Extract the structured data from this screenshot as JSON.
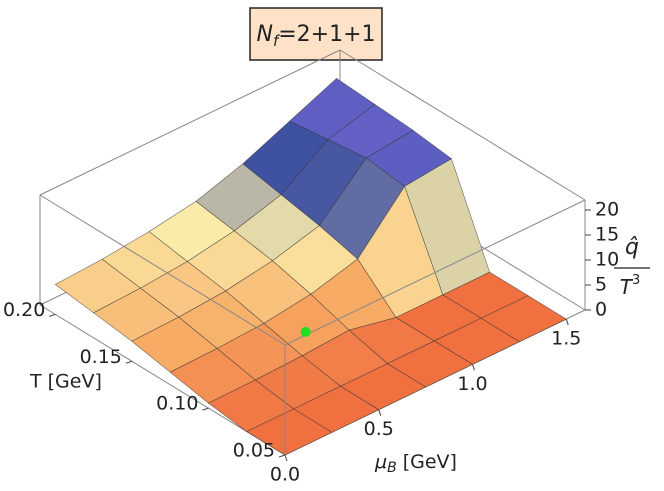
{
  "chart_data": {
    "type": "surface3d",
    "title": "N",
    "title_sub": "f",
    "title_rest": "=2+1+1",
    "xlabel": "μ",
    "xlabel_sub": "B",
    "xlabel_unit": "[GeV]",
    "ylabel": "T [GeV]",
    "zlabel_top": "q̂",
    "zlabel_bottom": "T",
    "zlabel_sup": "3",
    "x": [
      0,
      0.25,
      0.5,
      0.75,
      1.0,
      1.25,
      1.5
    ],
    "y": [
      0.05,
      0.075,
      0.1,
      0.125,
      0.15,
      0.175,
      0.2
    ],
    "z": [
      [
        0,
        0,
        0,
        0,
        0,
        0,
        0
      ],
      [
        0,
        0,
        0,
        0,
        0,
        0,
        0
      ],
      [
        1,
        1.1,
        1.4,
        2,
        0,
        0,
        0
      ],
      [
        2.5,
        2.7,
        3.2,
        4.5,
        7,
        17,
        18
      ],
      [
        4,
        4.3,
        5,
        6.5,
        9,
        18,
        19
      ],
      [
        5,
        5.4,
        6.2,
        7.8,
        10.5,
        17,
        19.5
      ],
      [
        6,
        6.5,
        7.5,
        9,
        12,
        16,
        20
      ]
    ],
    "point": {
      "x": 0.6,
      "y": 0.11,
      "z": 2.5,
      "color": "#22dd22"
    },
    "xlim": [
      0,
      1.6
    ],
    "ylim": [
      0.05,
      0.21
    ],
    "zlim": [
      0,
      22
    ],
    "xticks": [
      {
        "value": 0,
        "label": "0.0"
      },
      0.5,
      {
        "value": 1.0,
        "label": "1.0"
      },
      1.5
    ],
    "yticks": [
      0.05,
      {
        "value": 0.1,
        "label": "0.10"
      },
      0.15,
      {
        "value": 0.2,
        "label": "0.20"
      }
    ],
    "zticks": [
      0,
      5,
      10,
      15,
      20
    ]
  }
}
